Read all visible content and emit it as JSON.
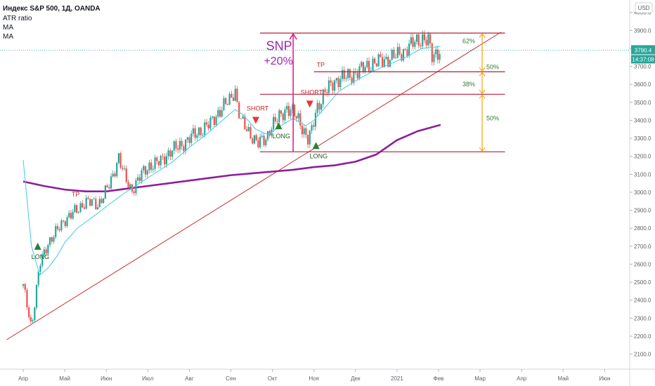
{
  "header": {
    "title": "Индекс S&P 500, 1Д, OANDA",
    "indicators": [
      "ATR ratio",
      "MA",
      "MA"
    ]
  },
  "price_axis": {
    "currency_button": "USD",
    "last_price_tag": "3790.4",
    "countdown_tag": "14:37:08",
    "last_color": "#26a69a"
  },
  "annotations": {
    "big_label_line1": "SNP",
    "big_label_line2": "+20%",
    "pct_62": "62%",
    "pct_50_a": "50%",
    "pct_38": "38%",
    "pct_50_b": "50%",
    "tp_1": "TP",
    "tp_2": "TP",
    "short_1": "SHORT",
    "short_2": "SHORT",
    "long_1": "LONG",
    "long_2": "LONG",
    "long_3": "LONG"
  },
  "colors": {
    "up_candle": "#26a69a",
    "down_candle": "#ef5350",
    "ma_fast": "#4dd0e1",
    "ma_slow": "#8e1e9c",
    "levels": "#b71c3a",
    "fib": "#f9a825",
    "snp_arrow": "#e91e8c"
  },
  "chart_data": {
    "type": "candlestick",
    "title": "Индекс S&P 500, 1Д, OANDA",
    "y_ticks": [
      4000,
      3900,
      3800,
      3700,
      3600,
      3500,
      3400,
      3300,
      3200,
      3100,
      3000,
      2900,
      2800,
      2700,
      2600,
      2500,
      2400,
      2300,
      2200,
      2100
    ],
    "ylim": [
      2040,
      4030
    ],
    "x_ticks": [
      "Апр",
      "Май",
      "Июн",
      "Июл",
      "Авг",
      "Сен",
      "Окт",
      "Ноя",
      "Дек",
      "2021",
      "Фев",
      "Мар",
      "Апр",
      "Май",
      "Июн"
    ],
    "x_tick_months": [
      0,
      1,
      2,
      3,
      4,
      5,
      6,
      7,
      8,
      9,
      10,
      11,
      12,
      13,
      14
    ],
    "x_data_end_month": 10.05,
    "close_path": [
      [
        0.0,
        2480
      ],
      [
        0.2,
        2250
      ],
      [
        0.4,
        2600
      ],
      [
        0.6,
        2720
      ],
      [
        0.8,
        2780
      ],
      [
        1.0,
        2850
      ],
      [
        1.3,
        2900
      ],
      [
        1.5,
        2950
      ],
      [
        1.8,
        2930
      ],
      [
        2.1,
        3050
      ],
      [
        2.3,
        3200
      ],
      [
        2.45,
        3080
      ],
      [
        2.6,
        3010
      ],
      [
        2.85,
        3100
      ],
      [
        3.05,
        3150
      ],
      [
        3.3,
        3170
      ],
      [
        3.55,
        3230
      ],
      [
        3.8,
        3260
      ],
      [
        4.0,
        3300
      ],
      [
        4.25,
        3340
      ],
      [
        4.5,
        3380
      ],
      [
        4.75,
        3460
      ],
      [
        5.0,
        3520
      ],
      [
        5.1,
        3580
      ],
      [
        5.15,
        3490
      ],
      [
        5.25,
        3390
      ],
      [
        5.45,
        3330
      ],
      [
        5.65,
        3270
      ],
      [
        5.85,
        3300
      ],
      [
        5.95,
        3360
      ],
      [
        6.1,
        3400
      ],
      [
        6.35,
        3470
      ],
      [
        6.5,
        3440
      ],
      [
        6.65,
        3400
      ],
      [
        6.85,
        3290
      ],
      [
        6.95,
        3340
      ],
      [
        7.05,
        3460
      ],
      [
        7.25,
        3550
      ],
      [
        7.5,
        3620
      ],
      [
        7.75,
        3640
      ],
      [
        8.0,
        3660
      ],
      [
        8.25,
        3700
      ],
      [
        8.5,
        3720
      ],
      [
        8.75,
        3740
      ],
      [
        9.0,
        3760
      ],
      [
        9.25,
        3800
      ],
      [
        9.45,
        3840
      ],
      [
        9.6,
        3855
      ],
      [
        9.75,
        3840
      ],
      [
        9.85,
        3750
      ],
      [
        9.95,
        3780
      ],
      [
        10.05,
        3790
      ]
    ],
    "ma_fast_path": [
      [
        0.0,
        3180
      ],
      [
        0.2,
        2700
      ],
      [
        0.4,
        2540
      ],
      [
        0.6,
        2580
      ],
      [
        0.8,
        2640
      ],
      [
        1.0,
        2720
      ],
      [
        1.3,
        2800
      ],
      [
        1.6,
        2850
      ],
      [
        2.0,
        2920
      ],
      [
        2.4,
        2990
      ],
      [
        2.8,
        3050
      ],
      [
        3.2,
        3110
      ],
      [
        3.6,
        3170
      ],
      [
        4.0,
        3250
      ],
      [
        4.4,
        3320
      ],
      [
        4.8,
        3400
      ],
      [
        5.1,
        3460
      ],
      [
        5.3,
        3430
      ],
      [
        5.6,
        3350
      ],
      [
        5.9,
        3320
      ],
      [
        6.2,
        3370
      ],
      [
        6.5,
        3410
      ],
      [
        6.8,
        3370
      ],
      [
        7.0,
        3400
      ],
      [
        7.3,
        3480
      ],
      [
        7.6,
        3560
      ],
      [
        8.0,
        3620
      ],
      [
        8.4,
        3670
      ],
      [
        8.8,
        3710
      ],
      [
        9.2,
        3750
      ],
      [
        9.6,
        3800
      ],
      [
        10.05,
        3810
      ]
    ],
    "ma_slow_path": [
      [
        0.0,
        3060
      ],
      [
        0.5,
        3035
      ],
      [
        1.0,
        3015
      ],
      [
        1.5,
        3005
      ],
      [
        2.0,
        3005
      ],
      [
        2.5,
        3020
      ],
      [
        3.0,
        3035
      ],
      [
        3.5,
        3050
      ],
      [
        4.0,
        3065
      ],
      [
        4.5,
        3080
      ],
      [
        5.0,
        3095
      ],
      [
        5.5,
        3105
      ],
      [
        6.0,
        3115
      ],
      [
        6.5,
        3125
      ],
      [
        7.0,
        3140
      ],
      [
        7.5,
        3150
      ],
      [
        8.0,
        3170
      ],
      [
        8.5,
        3210
      ],
      [
        9.0,
        3290
      ],
      [
        9.5,
        3340
      ],
      [
        10.05,
        3375
      ]
    ],
    "trendline": [
      [
        -0.4,
        2180
      ],
      [
        11.5,
        3890
      ]
    ],
    "levels": [
      {
        "value": 3885,
        "from": 5.7,
        "to": 11.6
      },
      {
        "value": 3670,
        "from": 7.0,
        "to": 11.6
      },
      {
        "value": 3545,
        "from": 5.7,
        "to": 11.6
      },
      {
        "value": 3225,
        "from": 5.7,
        "to": 11.6
      }
    ],
    "snp_arrow": {
      "month": 6.5,
      "from": 3225,
      "to": 3885
    },
    "fib_bracket": {
      "month": 11.05,
      "levels": [
        3885,
        3670,
        3545,
        3225
      ]
    },
    "signals": [
      {
        "type": "long",
        "month": 0.35,
        "value": 2700
      },
      {
        "type": "tp",
        "month": 1.25,
        "value": 2960
      },
      {
        "type": "short",
        "month": 5.6,
        "value": 3400
      },
      {
        "type": "long",
        "month": 6.15,
        "value": 3370
      },
      {
        "type": "short",
        "month": 6.9,
        "value": 3490
      },
      {
        "type": "long",
        "month": 7.05,
        "value": 3260
      },
      {
        "type": "tp",
        "month": 7.15,
        "value": 3680
      }
    ]
  }
}
